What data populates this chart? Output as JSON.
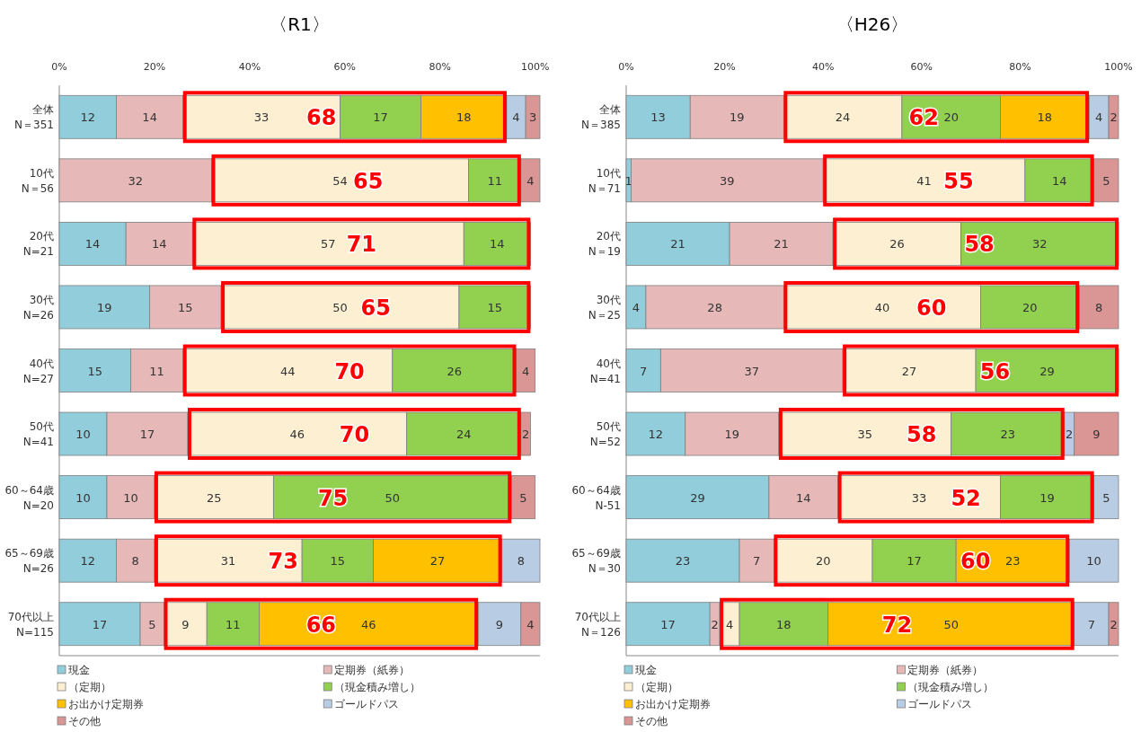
{
  "chart_data": [
    {
      "type": "bar",
      "title": "〈R1〉",
      "orientation": "horizontal",
      "stacked": true,
      "data_labels": true,
      "legend": "bottom",
      "grid": false,
      "categories": [
        "全体 N＝351",
        "10代 N＝56",
        "20代 N=21",
        "30代 N=26",
        "40代 N=27",
        "50代 N=41",
        "60～64歳 N=20",
        "65～69歳 N=26",
        "70代以上 N=115"
      ],
      "xlim": [
        0,
        101
      ],
      "xticks": [
        {
          "value": 0,
          "label": "0%"
        },
        {
          "value": 20,
          "label": "20%"
        },
        {
          "value": 40,
          "label": "40%"
        },
        {
          "value": 60,
          "label": "60%"
        },
        {
          "value": 80,
          "label": "80%"
        },
        {
          "value": 100,
          "label": "100%"
        }
      ],
      "series": [
        {
          "name": "現金",
          "color": "#92cddc",
          "values": [
            12,
            null,
            14,
            19,
            15,
            10,
            10,
            12,
            17
          ]
        },
        {
          "name": "定期券（紙券）",
          "color": "#e6b9b8",
          "values": [
            14,
            32,
            14,
            15,
            11,
            17,
            10,
            8,
            5
          ]
        },
        {
          "name": "（定期）",
          "color": "#fdf0d2",
          "values": [
            33,
            54,
            57,
            50,
            44,
            46,
            25,
            31,
            9
          ]
        },
        {
          "name": "（現金積み増し）",
          "color": "#92d050",
          "values": [
            17,
            11,
            14,
            15,
            26,
            24,
            50,
            15,
            11
          ]
        },
        {
          "name": "お出かけ定期券",
          "color": "#ffc000",
          "values": [
            18,
            null,
            null,
            null,
            null,
            null,
            null,
            27,
            46
          ]
        },
        {
          "name": "ゴールドパス",
          "color": "#b8cce4",
          "values": [
            4,
            null,
            null,
            null,
            null,
            null,
            null,
            8,
            9
          ]
        },
        {
          "name": "その他",
          "color": "#d99694",
          "values": [
            3,
            4,
            null,
            null,
            4,
            2,
            5,
            null,
            4
          ]
        }
      ],
      "annotations": [
        "68",
        "65",
        "71",
        "65",
        "70",
        "70",
        "75",
        "73",
        "66"
      ]
    },
    {
      "type": "bar",
      "title": "〈H26〉",
      "orientation": "horizontal",
      "stacked": true,
      "data_labels": true,
      "legend": "bottom",
      "grid": false,
      "categories": [
        "全体 N＝385",
        "10代 N＝71",
        "20代 N＝19",
        "30代 N＝25",
        "40代 N=41",
        "50代 N=52",
        "60～64歳 N-51",
        "65～69歳 N＝30",
        "70代以上 N＝126"
      ],
      "xlim": [
        0,
        100
      ],
      "xticks": [
        {
          "value": 0,
          "label": "0%"
        },
        {
          "value": 20,
          "label": "20%"
        },
        {
          "value": 40,
          "label": "40%"
        },
        {
          "value": 60,
          "label": "60%"
        },
        {
          "value": 80,
          "label": "80%"
        },
        {
          "value": 100,
          "label": "100%"
        }
      ],
      "series": [
        {
          "name": "現金",
          "color": "#92cddc",
          "values": [
            13,
            1,
            21,
            4,
            7,
            12,
            29,
            23,
            17
          ]
        },
        {
          "name": "定期券（紙券）",
          "color": "#e6b9b8",
          "values": [
            19,
            39,
            21,
            28,
            37,
            19,
            14,
            7,
            2
          ]
        },
        {
          "name": "（定期）",
          "color": "#fdf0d2",
          "values": [
            24,
            41,
            26,
            40,
            27,
            35,
            33,
            20,
            4
          ]
        },
        {
          "name": "（現金積み増し）",
          "color": "#92d050",
          "values": [
            20,
            14,
            32,
            20,
            29,
            23,
            19,
            17,
            18
          ]
        },
        {
          "name": "お出かけ定期券",
          "color": "#ffc000",
          "values": [
            18,
            null,
            null,
            null,
            null,
            null,
            null,
            23,
            50
          ]
        },
        {
          "name": "ゴールドパス",
          "color": "#b8cce4",
          "values": [
            4,
            null,
            null,
            null,
            null,
            2,
            5,
            10,
            7
          ]
        },
        {
          "name": "その他",
          "color": "#d99694",
          "values": [
            2,
            5,
            null,
            8,
            null,
            9,
            null,
            null,
            2
          ]
        }
      ],
      "annotations": [
        "62",
        "55",
        "58",
        "60",
        "56",
        "58",
        "52",
        "60",
        "72"
      ]
    }
  ]
}
